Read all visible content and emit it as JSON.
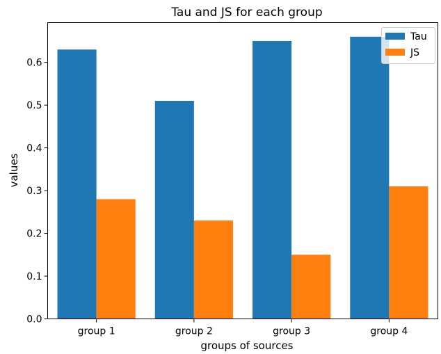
{
  "chart_data": {
    "type": "bar",
    "title": "Tau and JS for each group",
    "xlabel": "groups of sources",
    "ylabel": "values",
    "categories": [
      "group 1",
      "group 2",
      "group 3",
      "group 4"
    ],
    "series": [
      {
        "name": "Tau",
        "values": [
          0.63,
          0.51,
          0.65,
          0.66
        ],
        "color": "#1f77b4"
      },
      {
        "name": "JS",
        "values": [
          0.28,
          0.23,
          0.15,
          0.31
        ],
        "color": "#ff7f0e"
      }
    ],
    "ylim": [
      0,
      0.693
    ],
    "yticks": [
      0.0,
      0.1,
      0.2,
      0.3,
      0.4,
      0.5,
      0.6
    ],
    "ytick_labels": [
      "0.0",
      "0.1",
      "0.2",
      "0.3",
      "0.4",
      "0.5",
      "0.6"
    ],
    "grid": false,
    "legend_position": "top-right"
  }
}
